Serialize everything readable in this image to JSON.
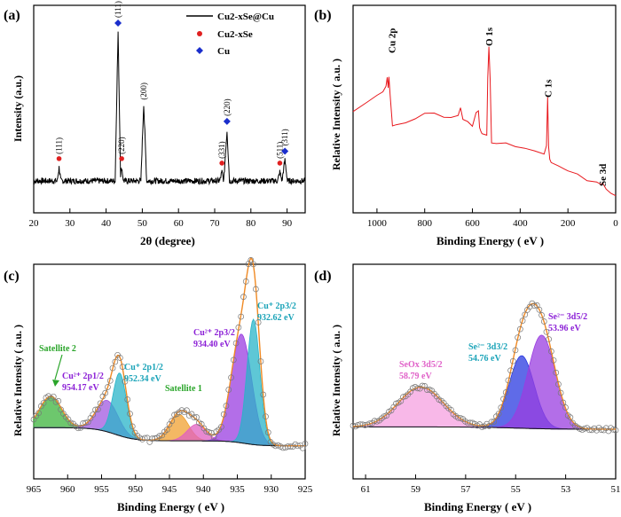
{
  "chart_data": [
    {
      "panel": "(a)",
      "type": "line",
      "xlabel": "2θ (degree)",
      "ylabel": "Intensity (a.u.)",
      "xlim": [
        20,
        95
      ],
      "xticks": [
        "20",
        "30",
        "40",
        "50",
        "60",
        "70",
        "80",
        "90"
      ],
      "series": [
        {
          "name": "Cu2-xSe@Cu",
          "color": "#000000",
          "x": [
            20,
            26.5,
            27,
            27.5,
            42.5,
            43.3,
            44.0,
            44.3,
            44.8,
            49.6,
            50.4,
            51.2,
            71.4,
            72.0,
            72.5,
            73.4,
            74.1,
            87.4,
            88.0,
            88.6,
            89.4,
            90.1,
            95
          ],
          "y": [
            0,
            0,
            9,
            0,
            0,
            100,
            4,
            9,
            0,
            0,
            52,
            0,
            0,
            6,
            0,
            34,
            0,
            0,
            6,
            0,
            14,
            0,
            0
          ]
        },
        {
          "name": "Cu2-xSe",
          "color": "#e02020",
          "marker": "circle",
          "x": [
            27.0,
            44.3,
            72.0,
            88.0
          ]
        },
        {
          "name": "Cu",
          "color": "#1a2ecc",
          "marker": "diamond",
          "x": [
            43.3,
            73.4,
            89.4
          ]
        }
      ],
      "annotations": [
        "(111)",
        "(220)",
        "(331)",
        "(511)",
        "(111)",
        "(200)",
        "(220)",
        "(311)"
      ]
    },
    {
      "panel": "(b)",
      "type": "line",
      "xlabel": "Binding Energy ( eV )",
      "ylabel": "Relative Intensity ( a.u. )",
      "xlim": [
        1100,
        0
      ],
      "xticks": [
        "1000",
        "800",
        "600",
        "400",
        "200",
        "0"
      ],
      "series": [
        {
          "color": "#e8191e",
          "x": [
            1100,
            1040,
            1000,
            975,
            962,
            957,
            953,
            950,
            945,
            935,
            920,
            880,
            840,
            800,
            760,
            720,
            690,
            660,
            650,
            640,
            620,
            600,
            585,
            575,
            570,
            565,
            560,
            540,
            536,
            531,
            526,
            520,
            500,
            460,
            420,
            380,
            340,
            300,
            290,
            285,
            281,
            276,
            270,
            240,
            200,
            160,
            120,
            80,
            60,
            55,
            40,
            20,
            0
          ],
          "y": [
            72,
            80,
            84,
            88,
            92,
            100,
            90,
            100,
            86,
            60,
            60,
            62,
            66,
            70,
            70,
            68,
            66,
            68,
            74,
            66,
            64,
            60,
            70,
            72,
            58,
            56,
            54,
            52,
            100,
            124,
            98,
            46,
            46,
            46,
            44,
            42,
            40,
            38,
            44,
            84,
            42,
            32,
            30,
            28,
            24,
            20,
            16,
            14,
            12,
            14,
            8,
            6,
            4
          ]
        }
      ],
      "annotations": [
        "Cu 2p",
        "O 1s",
        "C 1s",
        "Se 3d"
      ]
    },
    {
      "panel": "(c)",
      "type": "area",
      "xlabel": "Binding Energy ( eV )",
      "ylabel": "Relative Intensity ( a.u. )",
      "xlim": [
        965,
        925
      ],
      "xticks": [
        "965",
        "960",
        "955",
        "950",
        "945",
        "940",
        "935",
        "930",
        "925"
      ],
      "series": [
        {
          "name": "Satellite 2",
          "color": "#3cb43c",
          "center": 962.5,
          "height": 0.19,
          "width": 1.6
        },
        {
          "name": "Cu2+ 2p1/2",
          "color": "#a058e0",
          "center": 954.17,
          "height": 0.19,
          "width": 1.6
        },
        {
          "name": "Cu+ 2p1/2",
          "color": "#28b4c8",
          "center": 952.34,
          "height": 0.38,
          "width": 1.0
        },
        {
          "name": "Satellite 1",
          "color": "#f0a030",
          "center": 943.6,
          "height": 0.16,
          "width": 1.4
        },
        {
          "name": "Satellite 1",
          "color": "#e060c0",
          "center": 941.0,
          "height": 0.1,
          "width": 1.4
        },
        {
          "name": "Cu2+ 2p3/2",
          "color": "#9a3ee0",
          "center": 934.4,
          "height": 0.66,
          "width": 1.5
        },
        {
          "name": "Cu+ 2p3/2",
          "color": "#28b4c8",
          "center": 932.62,
          "height": 0.76,
          "width": 0.95
        }
      ],
      "annotations": [
        {
          "label": "Satellite 2",
          "color": "#2aa52a"
        },
        {
          "label": "Cu²⁺ 2p1/2",
          "value": "954.17 eV",
          "color": "#8b1fd6"
        },
        {
          "label": "Cu⁺ 2p1/2",
          "value": "952.34 eV",
          "color": "#1aa3b8"
        },
        {
          "label": "Satellite 1",
          "color": "#2aa52a"
        },
        {
          "label": "Cu²⁺ 2p3/2",
          "value": "934.40 eV",
          "color": "#8b1fd6"
        },
        {
          "label": "Cu⁺ 2p3/2",
          "value": "932.62 eV",
          "color": "#1aa3b8"
        }
      ]
    },
    {
      "panel": "(d)",
      "type": "area",
      "xlabel": "Binding Energy ( eV )",
      "ylabel": "Relative Intensity ( a.u. )",
      "xlim": [
        61.5,
        51
      ],
      "xticks": [
        "61",
        "59",
        "57",
        "55",
        "53",
        "51"
      ],
      "series": [
        {
          "name": "SeOx 3d5/2",
          "color": "#f5a0e0",
          "center": 58.79,
          "height": 0.34,
          "width": 0.9
        },
        {
          "name": "Se2- 3d3/2",
          "color": "#2a3ae0",
          "center": 54.76,
          "height": 0.62,
          "width": 0.5
        },
        {
          "name": "Se2- 3d5/2",
          "color": "#9a3ee0",
          "center": 53.96,
          "height": 0.8,
          "width": 0.55
        }
      ],
      "annotations": [
        {
          "label": "SeOx 3d5/2",
          "value": "58.79 eV",
          "color": "#e060c8"
        },
        {
          "label": "Se²⁻ 3d3/2",
          "value": "54.76 eV",
          "color": "#1aa3b8"
        },
        {
          "label": "Se²⁻ 3d5/2",
          "value": "53.96 eV",
          "color": "#8b1fd6"
        }
      ]
    }
  ],
  "panels": {
    "a": {
      "letter": "(a)",
      "ylabel": "Intensity (a.u.)",
      "xlabel": "2θ (degree)",
      "legend": [
        "Cu2-xSe@Cu",
        "Cu2-xSe",
        "Cu"
      ],
      "ticks": [
        "20",
        "30",
        "40",
        "50",
        "60",
        "70",
        "80",
        "90"
      ]
    },
    "b": {
      "letter": "(b)",
      "ylabel": "Relative Intensity ( a.u. )",
      "xlabel": "Binding Energy ( eV )",
      "ticks": [
        "1000",
        "800",
        "600",
        "400",
        "200",
        "0"
      ]
    },
    "c": {
      "letter": "(c)",
      "ylabel": "Relative Intensity ( a.u. )",
      "xlabel": "Binding Energy ( eV )",
      "ticks": [
        "965",
        "960",
        "955",
        "950",
        "945",
        "940",
        "935",
        "930",
        "925"
      ]
    },
    "d": {
      "letter": "(d)",
      "ylabel": "Relative Intensity ( a.u. )",
      "xlabel": "Binding Energy ( eV )",
      "ticks": [
        "61",
        "59",
        "57",
        "55",
        "53",
        "51"
      ]
    }
  }
}
